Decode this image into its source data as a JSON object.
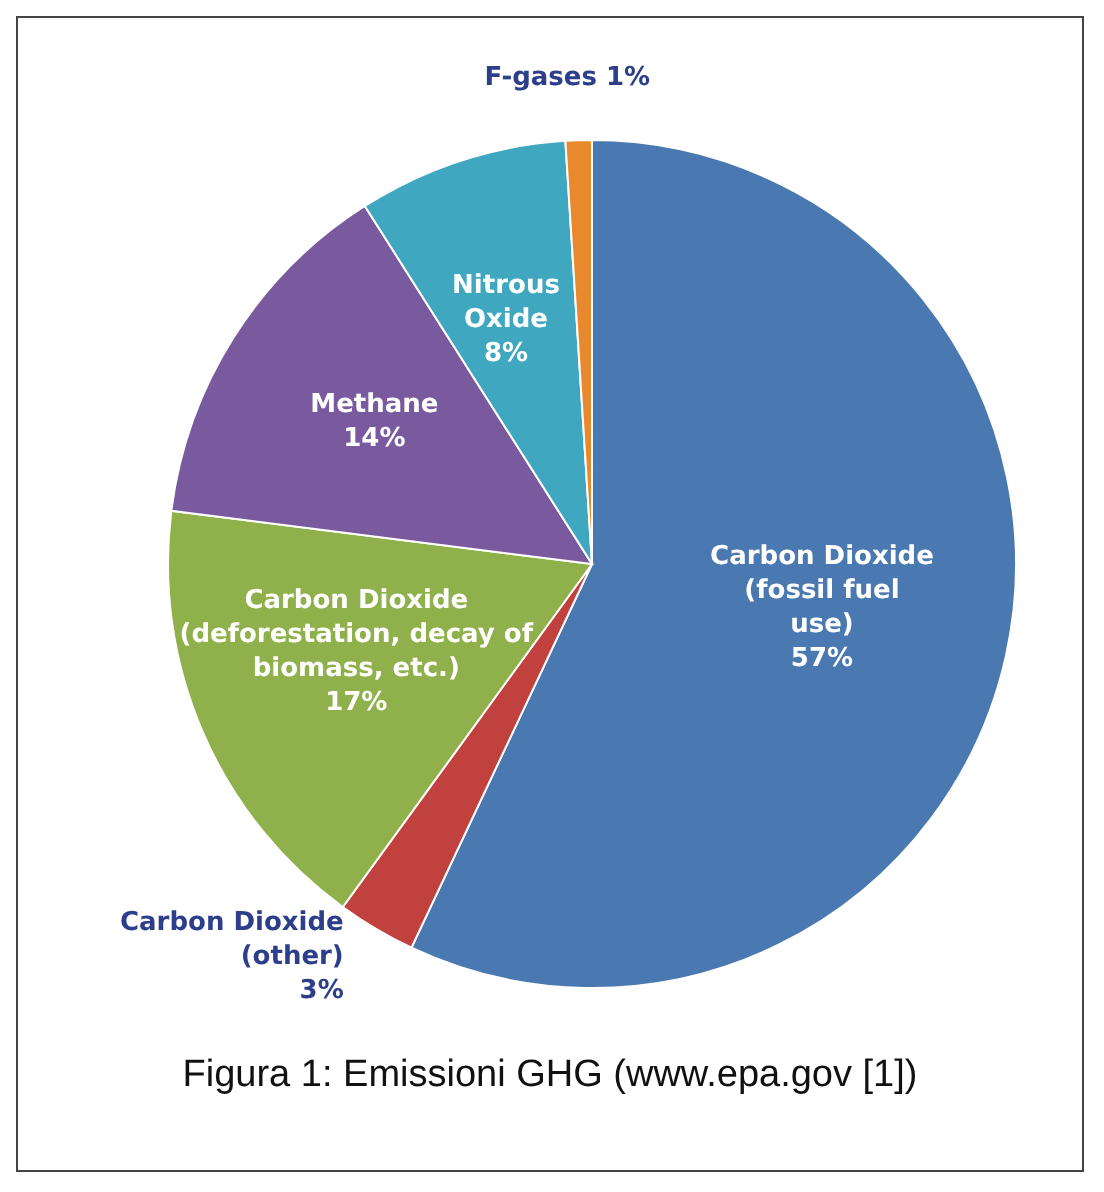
{
  "chart_data": {
    "type": "pie",
    "categories": [
      "Carbon Dioxide (fossil fuel use)",
      "Carbon Dioxide (other)",
      "Carbon Dioxide (deforestation, decay of biomass, etc.)",
      "Methane",
      "Nitrous Oxide",
      "F-gases"
    ],
    "values": [
      57,
      3,
      17,
      14,
      8,
      1
    ],
    "value_labels": [
      "57%",
      "3%",
      "17%",
      "14%",
      "8%",
      "1%"
    ],
    "colors": [
      "#4a78b0",
      "#c0413e",
      "#8fb04a",
      "#7a5a9f",
      "#3fa7bf",
      "#e8892e"
    ],
    "annotations": [
      "Figura 1: Emissioni GHG (www.epa.gov [1])"
    ]
  }
}
